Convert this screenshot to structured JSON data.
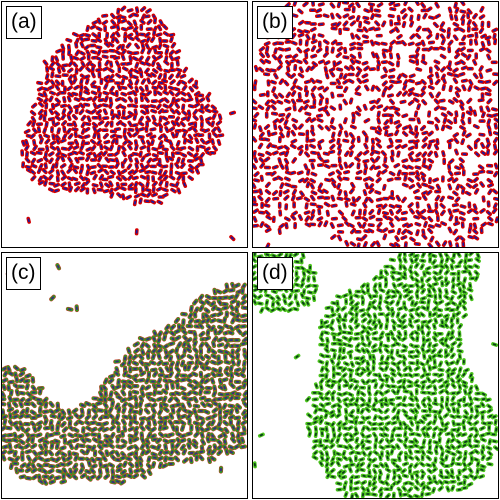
{
  "figure": {
    "panels": [
      {
        "label": "(a)",
        "scene": "compact-cluster",
        "particle_colors": {
          "body": "#d40000",
          "patch": "#1a1aa0"
        }
      },
      {
        "label": "(b)",
        "scene": "percolating-network",
        "particle_colors": {
          "body": "#d40000",
          "patch": "#1a1aa0"
        }
      },
      {
        "label": "(c)",
        "scene": "dense-domains",
        "particle_colors": {
          "body": "#2e9e1f",
          "patch": "#3a2a80",
          "edge": "#c0392b"
        }
      },
      {
        "label": "(d)",
        "scene": "bright-network",
        "particle_colors": {
          "body": "#4ac21c",
          "patch": "#0b3d1a"
        }
      }
    ]
  }
}
